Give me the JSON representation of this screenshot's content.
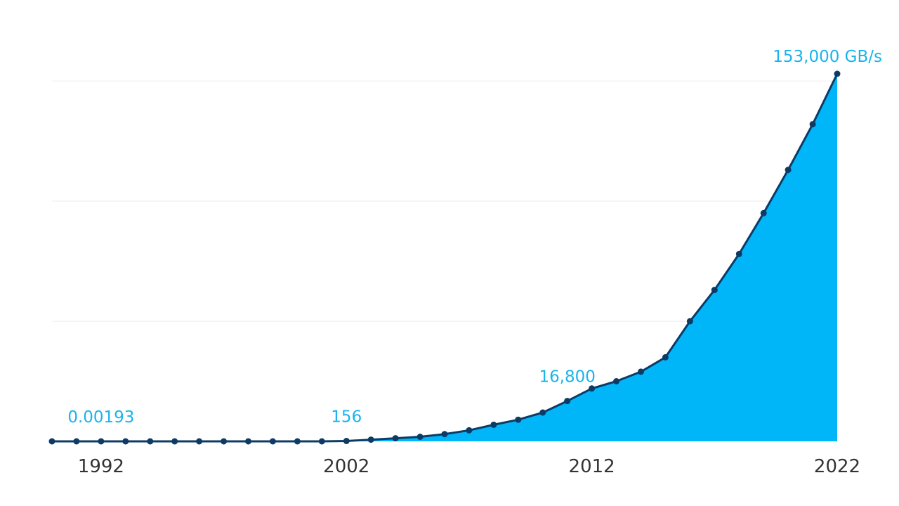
{
  "colors": {
    "area": "#00b6f9",
    "line": "#0d3b66",
    "label": "#1ab3ec",
    "grid": "#eeeeee",
    "tick": "#333333"
  },
  "chart_data": {
    "type": "area",
    "title": "",
    "xlabel": "",
    "ylabel": "",
    "x": [
      1990,
      1991,
      1992,
      1993,
      1994,
      1995,
      1996,
      1997,
      1998,
      1999,
      2000,
      2001,
      2002,
      2003,
      2004,
      2005,
      2006,
      2007,
      2008,
      2009,
      2010,
      2011,
      2012,
      2013,
      2014,
      2015,
      2016,
      2017,
      2018,
      2019,
      2020,
      2021,
      2022
    ],
    "series": [
      {
        "values": [
          0.0012,
          0.0016,
          0.00193,
          0.005,
          0.01,
          0.02,
          0.04,
          0.08,
          0.15,
          0.3,
          0.6,
          1.2,
          156,
          700,
          1300,
          1900,
          3000,
          4600,
          6900,
          9000,
          12000,
          16800,
          22000,
          25000,
          29000,
          35000,
          50000,
          63000,
          78000,
          95000,
          113000,
          132000,
          153000
        ]
      }
    ],
    "xlim": [
      1990,
      2022
    ],
    "ylim": [
      0,
      153000
    ],
    "x_ticks": [
      "1992",
      "2002",
      "2012",
      "2022"
    ],
    "x_tick_values": [
      1992,
      2002,
      2012,
      2022
    ],
    "y_gridlines": [
      50000,
      100000,
      150000
    ],
    "grid": true,
    "legend": "none",
    "annotations": [
      {
        "x": 1992,
        "value": 0.00193,
        "text": "0.00193"
      },
      {
        "x": 2002,
        "value": 156,
        "text": "156"
      },
      {
        "x": 2011,
        "value": 16800,
        "text": "16,800"
      },
      {
        "x": 2022,
        "value": 153000,
        "text": "153,000 GB/s"
      }
    ]
  }
}
